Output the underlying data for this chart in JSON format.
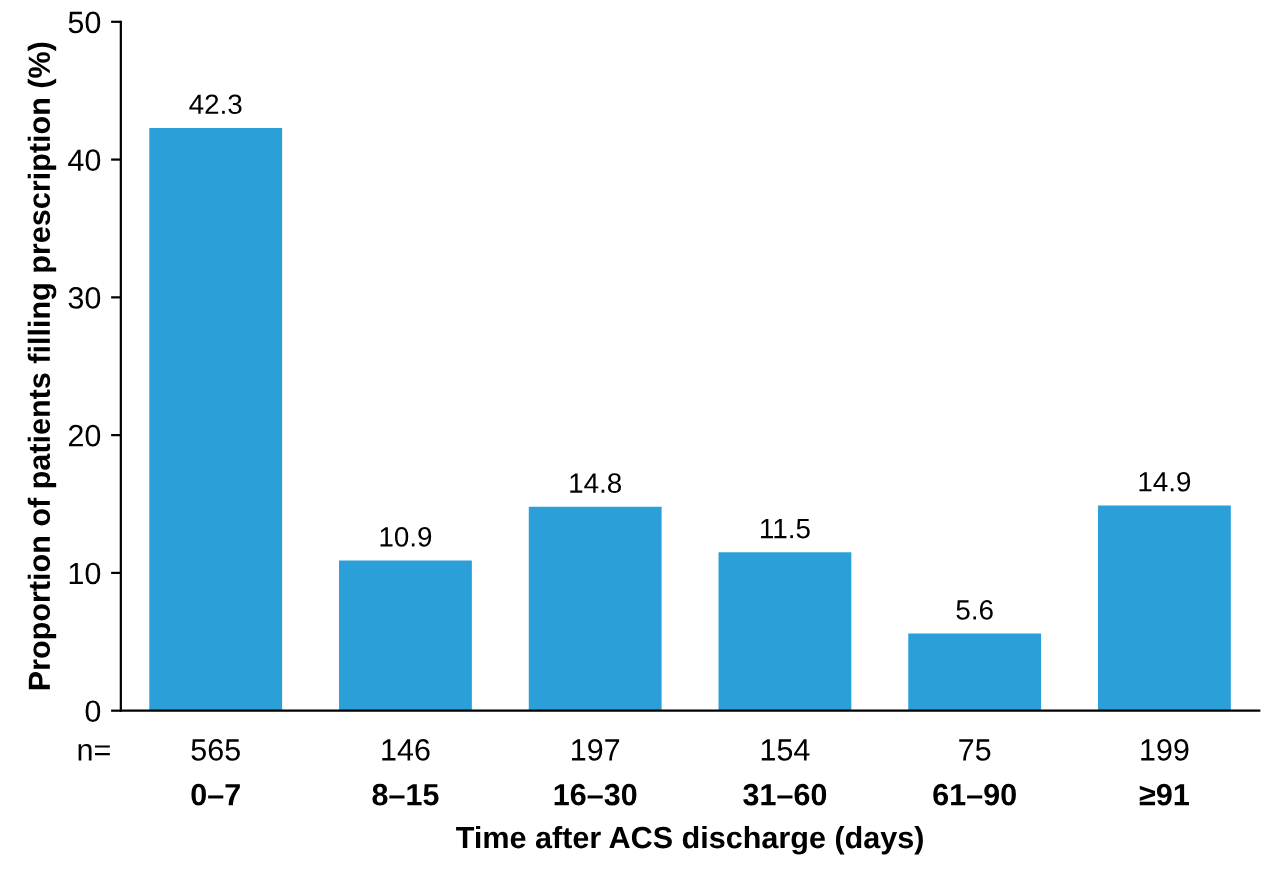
{
  "chart_data": {
    "type": "bar",
    "xlabel": "Time after ACS discharge (days)",
    "ylabel": "Proportion of patients filling prescription (%)",
    "categories": [
      "0–7",
      "8–15",
      "16–30",
      "31–60",
      "61–90",
      "≥91"
    ],
    "values": [
      42.3,
      10.9,
      14.8,
      11.5,
      5.6,
      14.9
    ],
    "color": "#2a9fd8",
    "ylim": [
      0,
      50
    ],
    "yticks": [
      0,
      10,
      20,
      30,
      40,
      50
    ],
    "grid": false,
    "legend": false,
    "data_labels": true,
    "annotations": [
      "n=",
      "565",
      "146",
      "197",
      "154",
      "75",
      "199"
    ]
  }
}
